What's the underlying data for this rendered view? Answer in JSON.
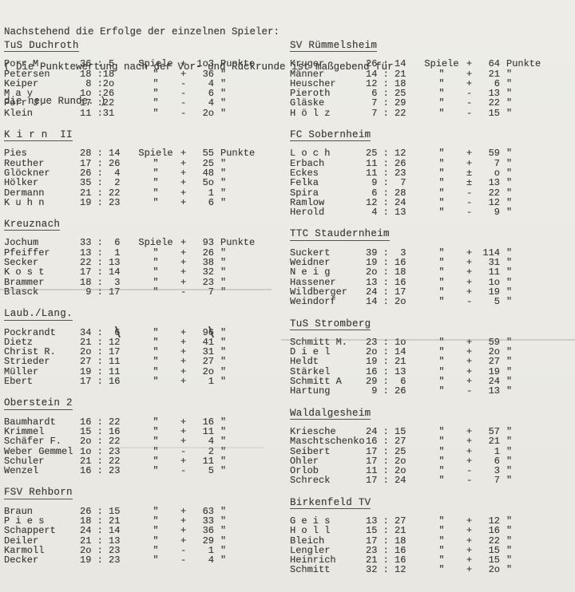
{
  "page": {
    "intro_line1": "Nachstehend die Erfolge der einzelnen Spieler:",
    "intro_line2": "( Die Punktewertung nach der Vor- und Rückrunde ist maßgebend für",
    "intro_line3": "die neue Runde. )"
  },
  "labels": {
    "games_word": "Spiele",
    "points_word": "Punkte",
    "ditto_mark": "\""
  },
  "sections": [
    {
      "column": "left",
      "title": "TuS Duchroth",
      "rows": [
        [
          "Porr M.",
          "36 : 5",
          "Spiele",
          "+",
          "1o3",
          "Punkte"
        ],
        [
          "Petersen",
          "18 :18",
          "\"",
          "+",
          "36",
          "\""
        ],
        [
          "Keiper",
          " 8 :2o",
          "\"",
          "-",
          "4",
          "\""
        ],
        [
          "M a y",
          "1o :26",
          "\"",
          "-",
          "6",
          "\""
        ],
        [
          "Porr J.",
          "17 :22",
          "\"",
          "-",
          "4",
          "\""
        ],
        [
          "Klein",
          "11 :31",
          "\"",
          "-",
          "2o",
          "\""
        ]
      ]
    },
    {
      "column": "left",
      "title": "K i r n  II",
      "rows": [
        [
          "Pies",
          "28 : 14",
          "Spiele",
          "+",
          "55",
          "Punkte"
        ],
        [
          "Reuther",
          "17 : 26",
          "\"",
          "+",
          "25",
          "\""
        ],
        [
          "Glöckner",
          "26 :  4",
          "\"",
          "+",
          "48",
          "\""
        ],
        [
          "Hölker",
          "35 :  2",
          "\"",
          "+",
          "5o",
          "\""
        ],
        [
          "Dermann",
          "21 : 22",
          "\"",
          "+",
          "1",
          "\""
        ],
        [
          "K u h n",
          "19 : 23",
          "\"",
          "+",
          "6",
          "\""
        ]
      ]
    },
    {
      "column": "left",
      "title": "Kreuznach",
      "rows": [
        [
          "Jochum",
          "33 :  6",
          "Spiele",
          "+",
          "93",
          "Punkte"
        ],
        [
          "Pfeiffer",
          "13 :  1",
          "\"",
          "+",
          "26",
          "\""
        ],
        [
          "Secker",
          "22 : 13",
          "\"",
          "+",
          "38",
          "\""
        ],
        [
          "K o s t",
          "17 : 14",
          "\"",
          "+",
          "32",
          "\""
        ],
        [
          "Brammer",
          "18 :  3",
          "\"",
          "+",
          "23",
          "\""
        ],
        [
          "Blasck",
          " 9 : 17",
          "\"",
          "-",
          "7",
          "\""
        ]
      ]
    },
    {
      "column": "left",
      "title": "Laub./Lang.",
      "rows": [
        [
          "Pockrandt",
          "34 :  6",
          "\"",
          "+",
          "96",
          "\"",
          "strike"
        ],
        [
          "Dietz",
          "21 : 12",
          "\"",
          "+",
          "41",
          "\""
        ],
        [
          "Christ R.",
          "2o : 17",
          "\"",
          "+",
          "31",
          "\""
        ],
        [
          "Strieder",
          "27 : 11",
          "\"",
          "+",
          "27",
          "\""
        ],
        [
          "Müller",
          "19 : 11",
          "\"",
          "+",
          "2o",
          "\""
        ],
        [
          "Ebert",
          "17 : 16",
          "\"",
          "+",
          "1",
          "\""
        ]
      ]
    },
    {
      "column": "left",
      "title": "Oberstein 2",
      "rows": [
        [
          "Baumhardt",
          "16 : 22",
          "\"",
          "+",
          "16",
          "\""
        ],
        [
          "Krimmel",
          "15 : 16",
          "\"",
          "+",
          "11",
          "\""
        ],
        [
          "Schäfer F.",
          "2o : 22",
          "\"",
          "+",
          "4",
          "\""
        ],
        [
          "Weber Gemmel",
          "1o : 23",
          "\"",
          "-",
          "2",
          "\""
        ],
        [
          "Schuler",
          "21 : 22",
          "\"",
          "+",
          "11",
          "\""
        ],
        [
          "Wenzel",
          "16 : 23",
          "\"",
          "-",
          "5",
          "\""
        ]
      ]
    },
    {
      "column": "left",
      "title": "FSV Rehborn",
      "rows": [
        [
          "Braun",
          "26 : 15",
          "\"",
          "+",
          "63",
          "\""
        ],
        [
          "P i e s",
          "18 : 21",
          "\"",
          "+",
          "33",
          "\""
        ],
        [
          "Schappert",
          "24 : 14",
          "\"",
          "+",
          "36",
          "\""
        ],
        [
          "Deiler",
          "21 : 13",
          "\"",
          "+",
          "29",
          "\""
        ],
        [
          "Karmoll",
          "2o : 23",
          "\"",
          "-",
          "1",
          "\""
        ],
        [
          "Decker",
          "19 : 23",
          "\"",
          "-",
          "4",
          "\""
        ]
      ]
    },
    {
      "column": "right",
      "title": "SV Rümmelsheim",
      "rows": [
        [
          "Kruger",
          "26 : 14",
          "Spiele",
          "+",
          "64",
          "Punkte"
        ],
        [
          "Männer",
          "14 : 21",
          "\"",
          "+",
          "21",
          "\""
        ],
        [
          "Heuscher",
          "12 : 18",
          "\"",
          "+",
          "6",
          "\""
        ],
        [
          "Pieroth",
          " 6 : 25",
          "\"",
          "-",
          "13",
          "\""
        ],
        [
          "Gläske",
          " 7 : 29",
          "\"",
          "-",
          "22",
          "\""
        ],
        [
          "H ö l z",
          " 7 : 22",
          "\"",
          "-",
          "15",
          "\""
        ]
      ]
    },
    {
      "column": "right",
      "title": "FC Sobernheim",
      "rows": [
        [
          "L o c h",
          "25 : 12",
          "\"",
          "+",
          "59",
          "\""
        ],
        [
          "Erbach",
          "11 : 26",
          "\"",
          "+",
          "7",
          "\""
        ],
        [
          "Eckes",
          "11 : 23",
          "\"",
          "±",
          "o",
          "\""
        ],
        [
          "Felka",
          " 9 :  7",
          "\"",
          "±",
          "13",
          "\""
        ],
        [
          "Spira",
          " 6 : 28",
          "\"",
          "-",
          "22",
          "\""
        ],
        [
          "Ramlow",
          "12 : 24",
          "\"",
          "-",
          "12",
          "\""
        ],
        [
          "Herold",
          " 4 : 13",
          "\"",
          "-",
          "9",
          "\""
        ]
      ]
    },
    {
      "column": "right",
      "title": "TTC Staudernheim",
      "rows": [
        [
          "Suckert",
          "39 :  3",
          "\"",
          "+",
          "114",
          "\""
        ],
        [
          "Weidner",
          "19 : 16",
          "\"",
          "+",
          "31",
          "\""
        ],
        [
          "N e i g",
          "2o : 18",
          "\"",
          "+",
          "11",
          "\""
        ],
        [
          "Hassener",
          "13 : 16",
          "\"",
          "+",
          "1o",
          "\""
        ],
        [
          "Wildberger",
          "24 : 17",
          "\"",
          "+",
          "19",
          "\""
        ],
        [
          "Weindorf",
          "14 : 2o",
          "\"",
          "-",
          "5",
          "\""
        ]
      ]
    },
    {
      "column": "right",
      "title": "TuS Stromberg",
      "rows": [
        [
          "Schmitt M.",
          "23 : 1o",
          "\"",
          "+",
          "59",
          "\""
        ],
        [
          "D i e l",
          "2o : 14",
          "\"",
          "+",
          "2o",
          "\""
        ],
        [
          "Heldt",
          "19 : 21",
          "\"",
          "+",
          "27",
          "\""
        ],
        [
          "Stärkel",
          "16 : 13",
          "\"",
          "+",
          "19",
          "\""
        ],
        [
          "Schmitt A",
          "29 :  6",
          "\"",
          "+",
          "24",
          "\""
        ],
        [
          "Hartung",
          " 9 : 26",
          "\"",
          "-",
          "13",
          "\""
        ]
      ]
    },
    {
      "column": "right",
      "title": "Waldalgesheim",
      "rows": [
        [
          "Kriesche",
          "24 : 15",
          "\"",
          "+",
          "57",
          "\""
        ],
        [
          "Maschtschenko",
          "16 : 27",
          "\"",
          "+",
          "21",
          "\""
        ],
        [
          "Seibert",
          "17 : 25",
          "\"",
          "+",
          "1",
          "\""
        ],
        [
          "Ohler",
          "17 : 2o",
          "\"",
          "+",
          "6",
          "\""
        ],
        [
          "Orlob",
          "11 : 2o",
          "\"",
          "-",
          "3",
          "\""
        ],
        [
          "Schreck",
          "17 : 24",
          "\"",
          "-",
          "7",
          "\""
        ]
      ]
    },
    {
      "column": "right",
      "title": "Birkenfeld TV",
      "rows": [
        [
          "G e i s",
          "13 : 27",
          "\"",
          "+",
          "12",
          "\""
        ],
        [
          "H o l l",
          "15 : 21",
          "\"",
          "+",
          "16",
          "\""
        ],
        [
          "Bleich",
          "17 : 18",
          "\"",
          "+",
          "22",
          "\""
        ],
        [
          "Lengler",
          "23 : 16",
          "\"",
          "+",
          "15",
          "\""
        ],
        [
          "Heinrich",
          "21 : 16",
          "\"",
          "+",
          "15",
          "\""
        ],
        [
          "Schmitt",
          "32 : 12",
          "\"",
          "+",
          "2o",
          "\""
        ]
      ]
    }
  ]
}
